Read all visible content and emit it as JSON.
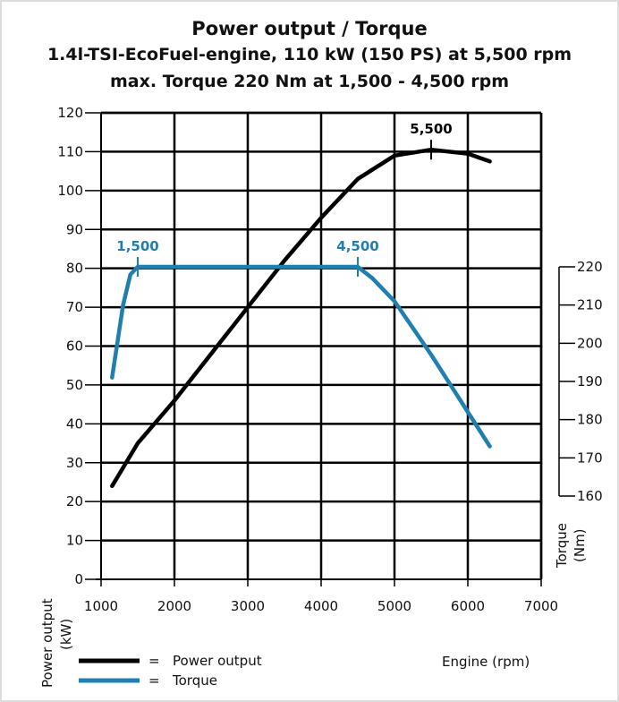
{
  "chart_data": {
    "type": "line",
    "title": "Power output / Torque",
    "subtitle_1": "1.4l-TSI-EcoFuel-engine, 110 kW (150 PS) at 5,500 rpm",
    "subtitle_2": "max. Torque 220 Nm at 1,500 - 4,500 rpm",
    "xlabel": "Engine (rpm)",
    "ylabel_left": "Power output (kW)",
    "ylabel_left_line1": "Power output",
    "ylabel_left_line2": "(kW)",
    "ylabel_right": "Torque (Nm)",
    "ylabel_right_line1": "Torque",
    "ylabel_right_line2": "(Nm)",
    "xlim": [
      1000,
      7000
    ],
    "ylim_left": [
      0,
      120
    ],
    "ylim_right": [
      160,
      220
    ],
    "x_ticks": [
      "1000",
      "2000",
      "3000",
      "4000",
      "5000",
      "6000",
      "7000"
    ],
    "y_left_ticks": [
      "0",
      "10",
      "20",
      "30",
      "40",
      "50",
      "60",
      "70",
      "80",
      "90",
      "100",
      "110",
      "120"
    ],
    "y_right_ticks": [
      "160",
      "170",
      "180",
      "190",
      "200",
      "210",
      "220"
    ],
    "grid": true,
    "legend_position": "bottom-left",
    "series": [
      {
        "name": "Power output",
        "axis": "left",
        "color": "#000000",
        "x": [
          1150,
          1500,
          2000,
          2500,
          3000,
          3500,
          4000,
          4500,
          5000,
          5500,
          6000,
          6300
        ],
        "y": [
          24,
          35,
          46,
          58,
          70,
          82,
          93,
          103,
          109,
          110.5,
          109.5,
          107.5
        ]
      },
      {
        "name": "Torque",
        "axis": "right",
        "color": "#1f7fb1",
        "x": [
          1150,
          1300,
          1400,
          1500,
          2000,
          3000,
          4000,
          4500,
          4700,
          5000,
          5500,
          6000,
          6300
        ],
        "y": [
          191,
          210,
          218,
          220,
          220,
          220,
          220,
          220,
          217,
          211,
          197,
          182,
          173
        ]
      }
    ],
    "annotations": [
      {
        "label": "5,500",
        "x": 5500,
        "y": 110.5,
        "axis": "left",
        "color": "#000000"
      },
      {
        "label": "1,500",
        "x": 1500,
        "y": 220,
        "axis": "right",
        "color": "#1f7fb1"
      },
      {
        "label": "4,500",
        "x": 4500,
        "y": 220,
        "axis": "right",
        "color": "#1f7fb1"
      }
    ],
    "legend": [
      {
        "symbol": "=",
        "label": "Power output",
        "color": "#000000"
      },
      {
        "symbol": "=",
        "label": "Torque",
        "color": "#1f7fb1"
      }
    ]
  }
}
